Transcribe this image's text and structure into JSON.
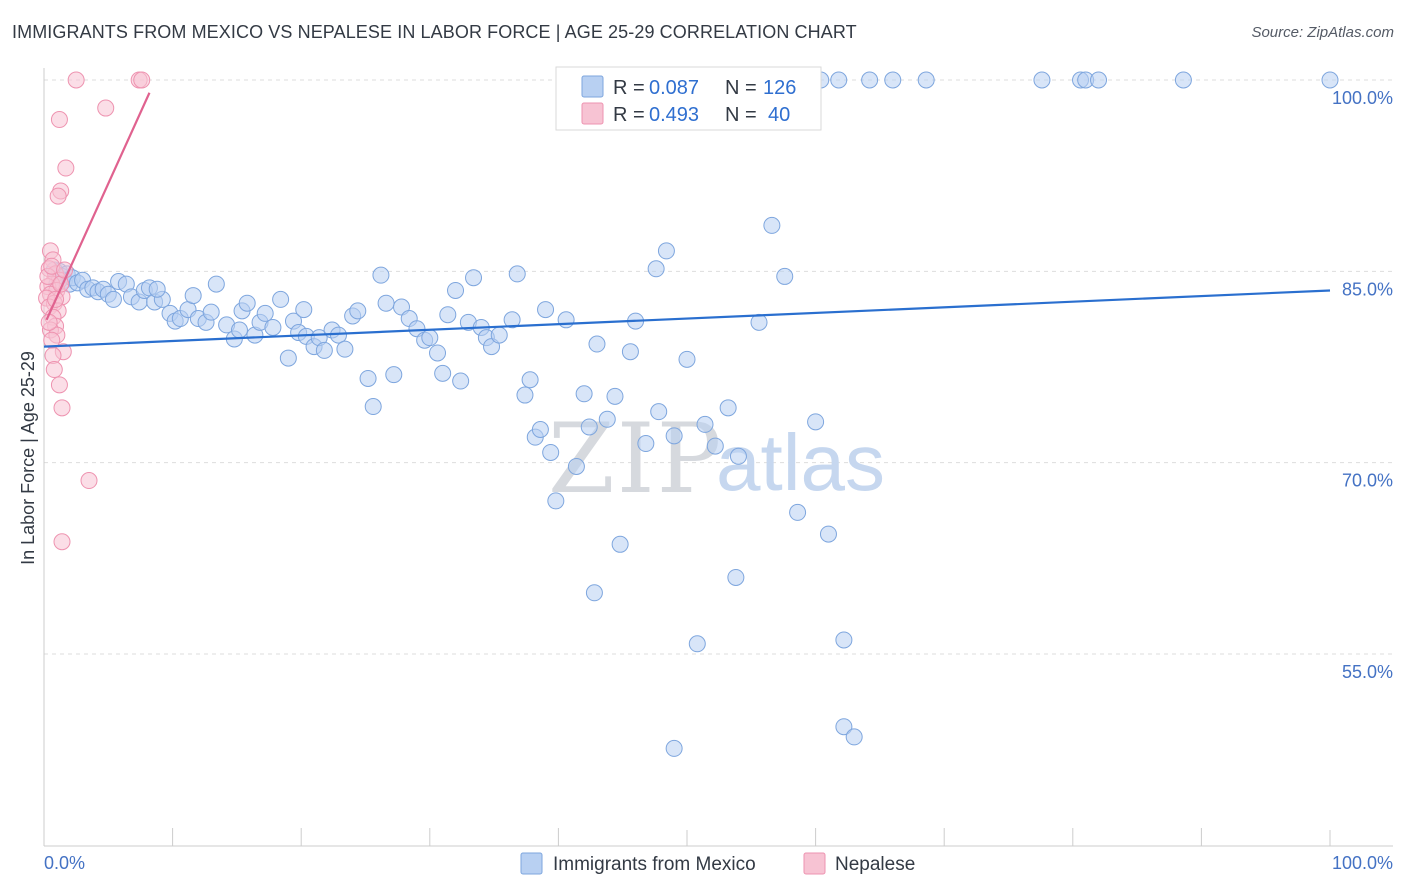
{
  "title": "IMMIGRANTS FROM MEXICO VS NEPALESE IN LABOR FORCE | AGE 25-29 CORRELATION CHART",
  "source": "Source: ZipAtlas.com",
  "watermark": {
    "zip": "ZIP",
    "atlas": "atlas"
  },
  "colors": {
    "blue_fill": "#b8d0f2",
    "blue_stroke": "#7ea6de",
    "blue_line": "#2a6fcf",
    "pink_fill": "#f7c3d3",
    "pink_stroke": "#ee93b0",
    "pink_line": "#e0628f",
    "axis_text": "#4472c4",
    "grid": "#dddddd"
  },
  "legend": {
    "rows": [
      {
        "r_label": "R = ",
        "r_value": "0.087",
        "n_label": "N = ",
        "n_value": "126"
      },
      {
        "r_label": "R = ",
        "r_value": "0.493",
        "n_label": "N = ",
        "n_value": "40"
      }
    ]
  },
  "bottom_legend": [
    "Immigrants from Mexico",
    "Nepalese"
  ],
  "chart_data": {
    "type": "scatter",
    "title": "IMMIGRANTS FROM MEXICO VS NEPALESE IN LABOR FORCE | AGE 25-29 CORRELATION CHART",
    "xlabel": "",
    "ylabel": "In Labor Force | Age 25-29",
    "xlim": [
      0,
      100
    ],
    "ylim": [
      43,
      102
    ],
    "x_tick_labels": [
      "0.0%",
      "100.0%"
    ],
    "y_ticks": [
      55,
      70,
      85,
      100
    ],
    "y_tick_labels": [
      "55.0%",
      "70.0%",
      "85.0%",
      "100.0%"
    ],
    "grid": true,
    "legend_position": "top-center",
    "series": [
      {
        "name": "Immigrants from Mexico",
        "R": 0.087,
        "N": 126,
        "trend": {
          "x": [
            0,
            100
          ],
          "y": [
            79.1,
            83.5
          ]
        },
        "points": [
          [
            0.8,
            85.1
          ],
          [
            1.0,
            84.0
          ],
          [
            1.2,
            85.0
          ],
          [
            1.4,
            84.6
          ],
          [
            1.6,
            84.3
          ],
          [
            1.8,
            84.8
          ],
          [
            2.0,
            84.0
          ],
          [
            2.2,
            84.5
          ],
          [
            2.6,
            84.1
          ],
          [
            3.0,
            84.3
          ],
          [
            3.4,
            83.6
          ],
          [
            3.8,
            83.7
          ],
          [
            4.2,
            83.4
          ],
          [
            4.6,
            83.6
          ],
          [
            5.0,
            83.2
          ],
          [
            5.4,
            82.8
          ],
          [
            5.8,
            84.2
          ],
          [
            6.4,
            84.0
          ],
          [
            6.8,
            83.0
          ],
          [
            7.4,
            82.6
          ],
          [
            7.8,
            83.5
          ],
          [
            8.2,
            83.7
          ],
          [
            8.6,
            82.6
          ],
          [
            9.2,
            82.8
          ],
          [
            9.8,
            81.7
          ],
          [
            10.2,
            81.1
          ],
          [
            10.6,
            81.3
          ],
          [
            11.2,
            82.0
          ],
          [
            11.6,
            83.1
          ],
          [
            12.0,
            81.3
          ],
          [
            12.6,
            81.0
          ],
          [
            13.0,
            81.8
          ],
          [
            13.4,
            84.0
          ],
          [
            14.2,
            80.8
          ],
          [
            14.8,
            79.7
          ],
          [
            15.4,
            81.9
          ],
          [
            15.8,
            82.5
          ],
          [
            16.4,
            80.0
          ],
          [
            16.8,
            81.0
          ],
          [
            17.2,
            81.7
          ],
          [
            17.8,
            80.6
          ],
          [
            18.4,
            82.8
          ],
          [
            19.0,
            78.2
          ],
          [
            19.4,
            81.1
          ],
          [
            19.8,
            80.2
          ],
          [
            20.4,
            79.9
          ],
          [
            21.0,
            79.1
          ],
          [
            21.4,
            79.8
          ],
          [
            21.8,
            78.8
          ],
          [
            22.4,
            80.4
          ],
          [
            22.9,
            80.0
          ],
          [
            23.4,
            78.9
          ],
          [
            24.0,
            81.5
          ],
          [
            24.4,
            81.9
          ],
          [
            25.2,
            76.6
          ],
          [
            25.6,
            74.4
          ],
          [
            26.2,
            84.7
          ],
          [
            26.6,
            82.5
          ],
          [
            27.2,
            76.9
          ],
          [
            27.8,
            82.2
          ],
          [
            28.4,
            81.3
          ],
          [
            29.0,
            80.5
          ],
          [
            29.6,
            79.6
          ],
          [
            30.0,
            79.8
          ],
          [
            30.6,
            78.6
          ],
          [
            31.4,
            81.6
          ],
          [
            31.0,
            77.0
          ],
          [
            32.0,
            83.5
          ],
          [
            32.4,
            76.4
          ],
          [
            33.0,
            81.0
          ],
          [
            33.4,
            84.5
          ],
          [
            34.0,
            80.6
          ],
          [
            34.4,
            79.8
          ],
          [
            34.8,
            79.1
          ],
          [
            35.4,
            80.0
          ],
          [
            36.4,
            81.2
          ],
          [
            37.4,
            75.3
          ],
          [
            37.8,
            76.5
          ],
          [
            38.2,
            72.0
          ],
          [
            38.6,
            72.6
          ],
          [
            39.4,
            70.8
          ],
          [
            39.8,
            67.0
          ],
          [
            39.0,
            82.0
          ],
          [
            40.6,
            81.2
          ],
          [
            41.4,
            69.7
          ],
          [
            42.0,
            75.4
          ],
          [
            42.4,
            72.8
          ],
          [
            43.0,
            79.3
          ],
          [
            43.8,
            73.4
          ],
          [
            44.4,
            75.2
          ],
          [
            44.8,
            63.6
          ],
          [
            45.6,
            78.7
          ],
          [
            46.0,
            81.1
          ],
          [
            46.8,
            71.5
          ],
          [
            47.6,
            85.2
          ],
          [
            47.8,
            74.0
          ],
          [
            48.4,
            86.6
          ],
          [
            49.0,
            72.1
          ],
          [
            50.0,
            78.1
          ],
          [
            50.8,
            55.8
          ],
          [
            51.4,
            73.0
          ],
          [
            52.2,
            71.3
          ],
          [
            53.2,
            74.3
          ],
          [
            53.8,
            61.0
          ],
          [
            54.0,
            70.5
          ],
          [
            55.6,
            81.0
          ],
          [
            56.6,
            88.6
          ],
          [
            57.6,
            84.6
          ],
          [
            58.6,
            66.1
          ],
          [
            60.0,
            73.2
          ],
          [
            61.0,
            64.4
          ],
          [
            62.2,
            56.1
          ],
          [
            62.2,
            49.3
          ],
          [
            63.0,
            48.5
          ],
          [
            64.2,
            100.0
          ],
          [
            66.0,
            100.0
          ],
          [
            68.6,
            100.0
          ],
          [
            77.6,
            100.0
          ],
          [
            80.6,
            100.0
          ],
          [
            81.0,
            100.0
          ],
          [
            82.0,
            100.0
          ],
          [
            88.6,
            100.0
          ],
          [
            100.0,
            100.0
          ],
          [
            51.6,
            100.0
          ],
          [
            53.8,
            100.0
          ],
          [
            55.6,
            100.0
          ],
          [
            56.4,
            100.0
          ],
          [
            57.6,
            100.0
          ],
          [
            60.4,
            100.0
          ],
          [
            61.8,
            100.0
          ],
          [
            49.0,
            47.6
          ],
          [
            42.8,
            59.8
          ],
          [
            36.8,
            84.8
          ],
          [
            15.2,
            80.4
          ],
          [
            20.2,
            82.0
          ],
          [
            8.8,
            83.6
          ]
        ]
      },
      {
        "name": "Nepalese",
        "R": 0.493,
        "N": 40,
        "trend": {
          "x": [
            0.2,
            8.2
          ],
          "y": [
            81.2,
            99.0
          ]
        },
        "points": [
          [
            2.5,
            100.0
          ],
          [
            7.4,
            100.0
          ],
          [
            7.6,
            100.0
          ],
          [
            4.8,
            97.8
          ],
          [
            1.2,
            96.9
          ],
          [
            1.7,
            93.1
          ],
          [
            1.3,
            91.3
          ],
          [
            1.1,
            90.9
          ],
          [
            0.5,
            86.6
          ],
          [
            0.7,
            85.9
          ],
          [
            0.4,
            85.2
          ],
          [
            0.9,
            84.8
          ],
          [
            1.2,
            84.3
          ],
          [
            0.6,
            84.0
          ],
          [
            0.3,
            83.8
          ],
          [
            1.0,
            83.5
          ],
          [
            0.5,
            83.2
          ],
          [
            1.4,
            83.0
          ],
          [
            0.2,
            82.9
          ],
          [
            0.8,
            82.5
          ],
          [
            0.4,
            82.2
          ],
          [
            1.1,
            81.9
          ],
          [
            0.7,
            81.4
          ],
          [
            0.9,
            80.7
          ],
          [
            0.5,
            80.4
          ],
          [
            1.0,
            80.0
          ],
          [
            0.6,
            79.6
          ],
          [
            1.5,
            78.7
          ],
          [
            0.7,
            78.4
          ],
          [
            0.8,
            77.3
          ],
          [
            1.2,
            76.1
          ],
          [
            1.4,
            74.3
          ],
          [
            3.5,
            68.6
          ],
          [
            1.4,
            63.8
          ],
          [
            0.3,
            84.6
          ],
          [
            0.6,
            85.4
          ],
          [
            1.3,
            84.0
          ],
          [
            0.9,
            82.8
          ],
          [
            0.4,
            81.0
          ],
          [
            1.6,
            85.1
          ]
        ]
      }
    ]
  }
}
